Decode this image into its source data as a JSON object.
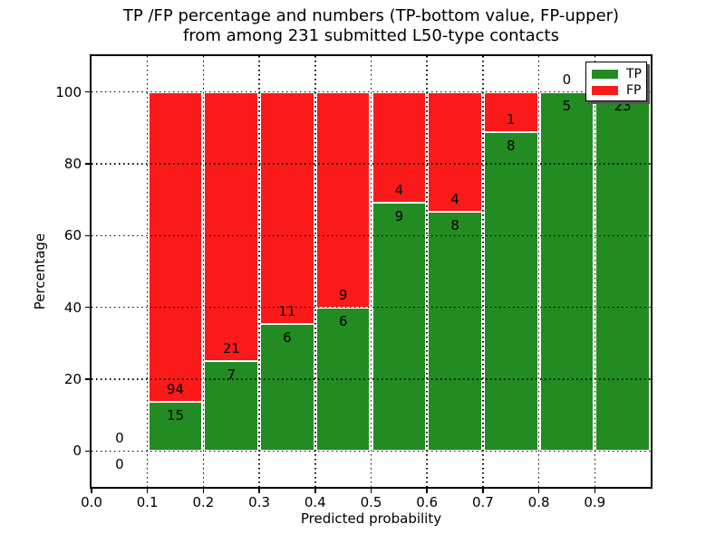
{
  "chart_data": {
    "type": "bar",
    "stacked": true,
    "normalized_to_percent": true,
    "title_line1": "TP /FP percentage and numbers (TP-bottom value, FP-upper)",
    "title_line2": "from among 231 submitted L50-type contacts",
    "title": "TP /FP percentage and numbers (TP-bottom value, FP-upper)\nfrom among 231 submitted L50-type contacts",
    "xlabel": "Predicted probability",
    "ylabel": "Percentage",
    "xlim": [
      0.0,
      1.0
    ],
    "ylim": [
      -10,
      110
    ],
    "grid": "dotted, both axes, drawn over bars",
    "legend_position": "upper right",
    "legend_shadow": true,
    "x_tick_labels": [
      "0.0",
      "0.1",
      "0.2",
      "0.3",
      "0.4",
      "0.5",
      "0.6",
      "0.7",
      "0.8",
      "0.9"
    ],
    "y_tick_labels": [
      "0",
      "20",
      "40",
      "60",
      "80",
      "100"
    ],
    "total_contacts": 231,
    "series": [
      {
        "name": "TP",
        "color": "#228B22",
        "position": "bottom"
      },
      {
        "name": "FP",
        "color": "#FA1A1A",
        "position": "upper"
      }
    ],
    "bins": [
      {
        "x_start": 0.0,
        "x_end": 0.1,
        "tp": 0,
        "fp": 0
      },
      {
        "x_start": 0.1,
        "x_end": 0.2,
        "tp": 15,
        "fp": 94
      },
      {
        "x_start": 0.2,
        "x_end": 0.3,
        "tp": 7,
        "fp": 21
      },
      {
        "x_start": 0.3,
        "x_end": 0.4,
        "tp": 6,
        "fp": 11
      },
      {
        "x_start": 0.4,
        "x_end": 0.5,
        "tp": 6,
        "fp": 9
      },
      {
        "x_start": 0.5,
        "x_end": 0.6,
        "tp": 9,
        "fp": 4
      },
      {
        "x_start": 0.6,
        "x_end": 0.7,
        "tp": 8,
        "fp": 4
      },
      {
        "x_start": 0.7,
        "x_end": 0.8,
        "tp": 8,
        "fp": 1
      },
      {
        "x_start": 0.8,
        "x_end": 0.9,
        "tp": 5,
        "fp": 0
      },
      {
        "x_start": 0.9,
        "x_end": 1.0,
        "tp": 23,
        "fp": 0
      }
    ]
  }
}
